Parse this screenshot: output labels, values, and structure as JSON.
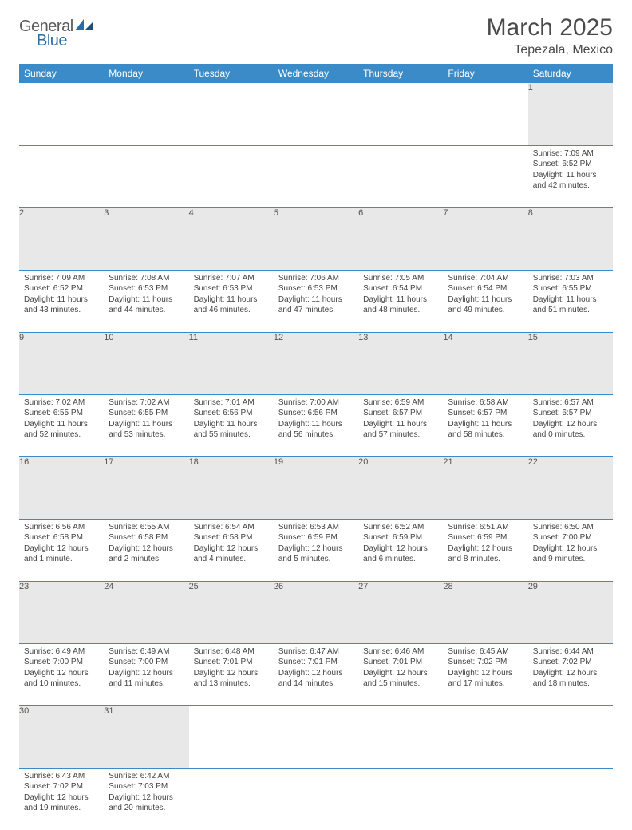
{
  "brand": {
    "general": "General",
    "blue": "Blue"
  },
  "title": {
    "month": "March 2025",
    "location": "Tepezala, Mexico"
  },
  "colors": {
    "header_bg": "#3b8bc8",
    "header_text": "#ffffff",
    "daynum_bg": "#e8e8e8",
    "rule": "#3b8bc8",
    "logo_gray": "#5a5a5a",
    "logo_blue": "#2d6ca2"
  },
  "weekdays": [
    "Sunday",
    "Monday",
    "Tuesday",
    "Wednesday",
    "Thursday",
    "Friday",
    "Saturday"
  ],
  "weeks": [
    {
      "nums": [
        "",
        "",
        "",
        "",
        "",
        "",
        "1"
      ],
      "cells": [
        null,
        null,
        null,
        null,
        null,
        null,
        {
          "sr": "Sunrise: 7:09 AM",
          "ss": "Sunset: 6:52 PM",
          "dl1": "Daylight: 11 hours",
          "dl2": "and 42 minutes."
        }
      ]
    },
    {
      "nums": [
        "2",
        "3",
        "4",
        "5",
        "6",
        "7",
        "8"
      ],
      "cells": [
        {
          "sr": "Sunrise: 7:09 AM",
          "ss": "Sunset: 6:52 PM",
          "dl1": "Daylight: 11 hours",
          "dl2": "and 43 minutes."
        },
        {
          "sr": "Sunrise: 7:08 AM",
          "ss": "Sunset: 6:53 PM",
          "dl1": "Daylight: 11 hours",
          "dl2": "and 44 minutes."
        },
        {
          "sr": "Sunrise: 7:07 AM",
          "ss": "Sunset: 6:53 PM",
          "dl1": "Daylight: 11 hours",
          "dl2": "and 46 minutes."
        },
        {
          "sr": "Sunrise: 7:06 AM",
          "ss": "Sunset: 6:53 PM",
          "dl1": "Daylight: 11 hours",
          "dl2": "and 47 minutes."
        },
        {
          "sr": "Sunrise: 7:05 AM",
          "ss": "Sunset: 6:54 PM",
          "dl1": "Daylight: 11 hours",
          "dl2": "and 48 minutes."
        },
        {
          "sr": "Sunrise: 7:04 AM",
          "ss": "Sunset: 6:54 PM",
          "dl1": "Daylight: 11 hours",
          "dl2": "and 49 minutes."
        },
        {
          "sr": "Sunrise: 7:03 AM",
          "ss": "Sunset: 6:55 PM",
          "dl1": "Daylight: 11 hours",
          "dl2": "and 51 minutes."
        }
      ]
    },
    {
      "nums": [
        "9",
        "10",
        "11",
        "12",
        "13",
        "14",
        "15"
      ],
      "cells": [
        {
          "sr": "Sunrise: 7:02 AM",
          "ss": "Sunset: 6:55 PM",
          "dl1": "Daylight: 11 hours",
          "dl2": "and 52 minutes."
        },
        {
          "sr": "Sunrise: 7:02 AM",
          "ss": "Sunset: 6:55 PM",
          "dl1": "Daylight: 11 hours",
          "dl2": "and 53 minutes."
        },
        {
          "sr": "Sunrise: 7:01 AM",
          "ss": "Sunset: 6:56 PM",
          "dl1": "Daylight: 11 hours",
          "dl2": "and 55 minutes."
        },
        {
          "sr": "Sunrise: 7:00 AM",
          "ss": "Sunset: 6:56 PM",
          "dl1": "Daylight: 11 hours",
          "dl2": "and 56 minutes."
        },
        {
          "sr": "Sunrise: 6:59 AM",
          "ss": "Sunset: 6:57 PM",
          "dl1": "Daylight: 11 hours",
          "dl2": "and 57 minutes."
        },
        {
          "sr": "Sunrise: 6:58 AM",
          "ss": "Sunset: 6:57 PM",
          "dl1": "Daylight: 11 hours",
          "dl2": "and 58 minutes."
        },
        {
          "sr": "Sunrise: 6:57 AM",
          "ss": "Sunset: 6:57 PM",
          "dl1": "Daylight: 12 hours",
          "dl2": "and 0 minutes."
        }
      ]
    },
    {
      "nums": [
        "16",
        "17",
        "18",
        "19",
        "20",
        "21",
        "22"
      ],
      "cells": [
        {
          "sr": "Sunrise: 6:56 AM",
          "ss": "Sunset: 6:58 PM",
          "dl1": "Daylight: 12 hours",
          "dl2": "and 1 minute."
        },
        {
          "sr": "Sunrise: 6:55 AM",
          "ss": "Sunset: 6:58 PM",
          "dl1": "Daylight: 12 hours",
          "dl2": "and 2 minutes."
        },
        {
          "sr": "Sunrise: 6:54 AM",
          "ss": "Sunset: 6:58 PM",
          "dl1": "Daylight: 12 hours",
          "dl2": "and 4 minutes."
        },
        {
          "sr": "Sunrise: 6:53 AM",
          "ss": "Sunset: 6:59 PM",
          "dl1": "Daylight: 12 hours",
          "dl2": "and 5 minutes."
        },
        {
          "sr": "Sunrise: 6:52 AM",
          "ss": "Sunset: 6:59 PM",
          "dl1": "Daylight: 12 hours",
          "dl2": "and 6 minutes."
        },
        {
          "sr": "Sunrise: 6:51 AM",
          "ss": "Sunset: 6:59 PM",
          "dl1": "Daylight: 12 hours",
          "dl2": "and 8 minutes."
        },
        {
          "sr": "Sunrise: 6:50 AM",
          "ss": "Sunset: 7:00 PM",
          "dl1": "Daylight: 12 hours",
          "dl2": "and 9 minutes."
        }
      ]
    },
    {
      "nums": [
        "23",
        "24",
        "25",
        "26",
        "27",
        "28",
        "29"
      ],
      "cells": [
        {
          "sr": "Sunrise: 6:49 AM",
          "ss": "Sunset: 7:00 PM",
          "dl1": "Daylight: 12 hours",
          "dl2": "and 10 minutes."
        },
        {
          "sr": "Sunrise: 6:49 AM",
          "ss": "Sunset: 7:00 PM",
          "dl1": "Daylight: 12 hours",
          "dl2": "and 11 minutes."
        },
        {
          "sr": "Sunrise: 6:48 AM",
          "ss": "Sunset: 7:01 PM",
          "dl1": "Daylight: 12 hours",
          "dl2": "and 13 minutes."
        },
        {
          "sr": "Sunrise: 6:47 AM",
          "ss": "Sunset: 7:01 PM",
          "dl1": "Daylight: 12 hours",
          "dl2": "and 14 minutes."
        },
        {
          "sr": "Sunrise: 6:46 AM",
          "ss": "Sunset: 7:01 PM",
          "dl1": "Daylight: 12 hours",
          "dl2": "and 15 minutes."
        },
        {
          "sr": "Sunrise: 6:45 AM",
          "ss": "Sunset: 7:02 PM",
          "dl1": "Daylight: 12 hours",
          "dl2": "and 17 minutes."
        },
        {
          "sr": "Sunrise: 6:44 AM",
          "ss": "Sunset: 7:02 PM",
          "dl1": "Daylight: 12 hours",
          "dl2": "and 18 minutes."
        }
      ]
    },
    {
      "nums": [
        "30",
        "31",
        "",
        "",
        "",
        "",
        ""
      ],
      "cells": [
        {
          "sr": "Sunrise: 6:43 AM",
          "ss": "Sunset: 7:02 PM",
          "dl1": "Daylight: 12 hours",
          "dl2": "and 19 minutes."
        },
        {
          "sr": "Sunrise: 6:42 AM",
          "ss": "Sunset: 7:03 PM",
          "dl1": "Daylight: 12 hours",
          "dl2": "and 20 minutes."
        },
        null,
        null,
        null,
        null,
        null
      ]
    }
  ]
}
